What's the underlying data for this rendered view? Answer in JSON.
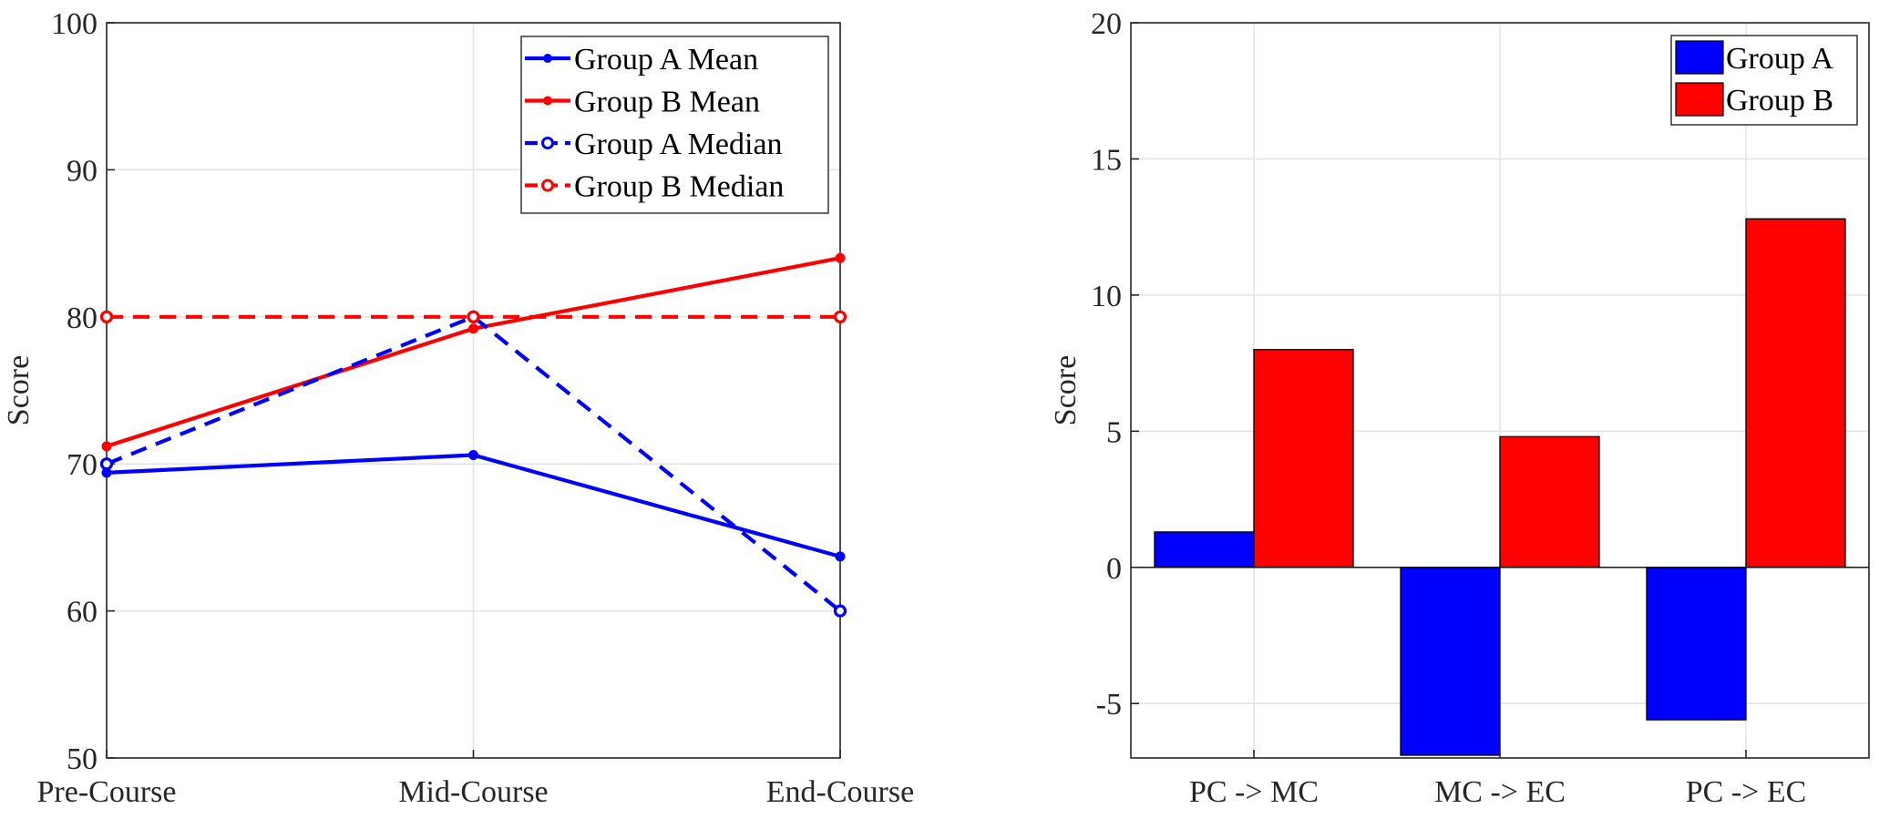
{
  "chart_data": [
    {
      "type": "line",
      "categories": [
        "Pre-Course",
        "Mid-Course",
        "End-Course"
      ],
      "ylabel": "Score",
      "ylim": [
        50,
        100
      ],
      "yticks": [
        50,
        60,
        70,
        80,
        90,
        100
      ],
      "grid": true,
      "legend_position": "top-right",
      "series": [
        {
          "name": "Group A Mean",
          "values": [
            69.4,
            70.6,
            63.7
          ],
          "color": "#0000ff",
          "style": "solid",
          "marker": "dot"
        },
        {
          "name": "Group B Mean",
          "values": [
            71.2,
            79.2,
            84.0
          ],
          "color": "#ff0000",
          "style": "solid",
          "marker": "dot"
        },
        {
          "name": "Group A Median",
          "values": [
            70,
            80,
            60
          ],
          "color": "#0000ff",
          "style": "dashed",
          "marker": "circle"
        },
        {
          "name": "Group B Median",
          "values": [
            80,
            80,
            80
          ],
          "color": "#ff0000",
          "style": "dashed",
          "marker": "circle"
        }
      ]
    },
    {
      "type": "bar",
      "categories": [
        "PC -> MC",
        "MC -> EC",
        "PC -> EC"
      ],
      "ylabel": "Score",
      "ylim": [
        -7,
        20
      ],
      "yticks": [
        -5,
        0,
        5,
        10,
        15,
        20
      ],
      "grid": true,
      "legend_position": "top-right",
      "series": [
        {
          "name": "Group A",
          "values": [
            1.3,
            -6.9,
            -5.6
          ],
          "color": "#0000ff"
        },
        {
          "name": "Group B",
          "values": [
            8.0,
            4.8,
            12.8
          ],
          "color": "#ff0000"
        }
      ]
    }
  ]
}
